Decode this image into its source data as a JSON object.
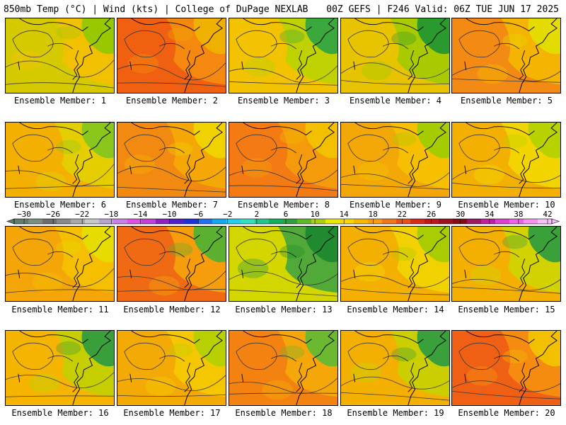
{
  "header": {
    "left": "850mb Temp (°C) | Wind (kts) | College of DuPage NEXLAB",
    "right": "00Z GEFS | F246 Valid: 06Z TUE JUN 17 2025"
  },
  "members": [
    {
      "caption": "Ensemble Member: 1",
      "scheme": [
        "#d5ca00",
        "#f2c000",
        "#9ac800"
      ]
    },
    {
      "caption": "Ensemble Member: 2",
      "scheme": [
        "#f06010",
        "#f48a10",
        "#f0b000"
      ]
    },
    {
      "caption": "Ensemble Member: 3",
      "scheme": [
        "#f3c200",
        "#bcd200",
        "#3aa83c"
      ]
    },
    {
      "caption": "Ensemble Member: 4",
      "scheme": [
        "#e8c400",
        "#a6ca00",
        "#2b9a2e"
      ]
    },
    {
      "caption": "Ensemble Member: 5",
      "scheme": [
        "#f38a14",
        "#f4b600",
        "#e4dc00"
      ]
    },
    {
      "caption": "Ensemble Member: 6",
      "scheme": [
        "#f3b000",
        "#e4d000",
        "#8bc61c"
      ]
    },
    {
      "caption": "Ensemble Member: 7",
      "scheme": [
        "#f28a12",
        "#f4aa05",
        "#f0d200"
      ]
    },
    {
      "caption": "Ensemble Member: 8",
      "scheme": [
        "#f47a14",
        "#f49c0a",
        "#f2c000"
      ]
    },
    {
      "caption": "Ensemble Member: 9",
      "scheme": [
        "#f3a808",
        "#f5c000",
        "#a4cc00"
      ]
    },
    {
      "caption": "Ensemble Member: 10",
      "scheme": [
        "#f4b000",
        "#f0d600",
        "#b8d200"
      ]
    },
    {
      "caption": "Ensemble Member: 11",
      "scheme": [
        "#f4a508",
        "#f4c000",
        "#e6dc00"
      ]
    },
    {
      "caption": "Ensemble Member: 12",
      "scheme": [
        "#f06a14",
        "#f4a00a",
        "#5cb030"
      ]
    },
    {
      "caption": "Ensemble Member: 13",
      "scheme": [
        "#d4d600",
        "#4aa83a",
        "#1f8a30"
      ]
    },
    {
      "caption": "Ensemble Member: 14",
      "scheme": [
        "#f4b000",
        "#f0d400",
        "#a8cc00"
      ]
    },
    {
      "caption": "Ensemble Member: 15",
      "scheme": [
        "#f4b000",
        "#d0d400",
        "#3aa03a"
      ]
    },
    {
      "caption": "Ensemble Member: 16",
      "scheme": [
        "#f4b400",
        "#c4d000",
        "#3a9e3a"
      ]
    },
    {
      "caption": "Ensemble Member: 17",
      "scheme": [
        "#f4aa05",
        "#f4c800",
        "#b8d000"
      ]
    },
    {
      "caption": "Ensemble Member: 18",
      "scheme": [
        "#f48210",
        "#f4a808",
        "#6cb830"
      ]
    },
    {
      "caption": "Ensemble Member: 19",
      "scheme": [
        "#f4b000",
        "#c8d000",
        "#3aa03c"
      ]
    },
    {
      "caption": "Ensemble Member: 20",
      "scheme": [
        "#f06014",
        "#f48e10",
        "#f2c000"
      ]
    }
  ],
  "colorbar": {
    "labels": [
      "−30",
      "−26",
      "−22",
      "−18",
      "−14",
      "−10",
      "−6",
      "−2",
      "2",
      "6",
      "10",
      "14",
      "18",
      "22",
      "26",
      "30",
      "34",
      "38",
      "42"
    ],
    "colors": [
      "#5f7f6c",
      "#7a8f7f",
      "#6e6e6e",
      "#8a8a8a",
      "#a8a8a8",
      "#c8c8c8",
      "#b7a4cf",
      "#c880e8",
      "#e050e8",
      "#c040d8",
      "#9020c0",
      "#5020c8",
      "#2030d8",
      "#2070f0",
      "#10a8f0",
      "#20d0f0",
      "#30e0c0",
      "#20c890",
      "#10b060",
      "#2fa040",
      "#60b828",
      "#a8d010",
      "#e8e800",
      "#f8d800",
      "#f8b800",
      "#f89c10",
      "#f07818",
      "#e85018",
      "#d82818",
      "#c01818",
      "#a01018",
      "#880818",
      "#a01860",
      "#c020a0",
      "#e040d0",
      "#f060e8",
      "#f890f0",
      "#f8c0f8"
    ]
  }
}
